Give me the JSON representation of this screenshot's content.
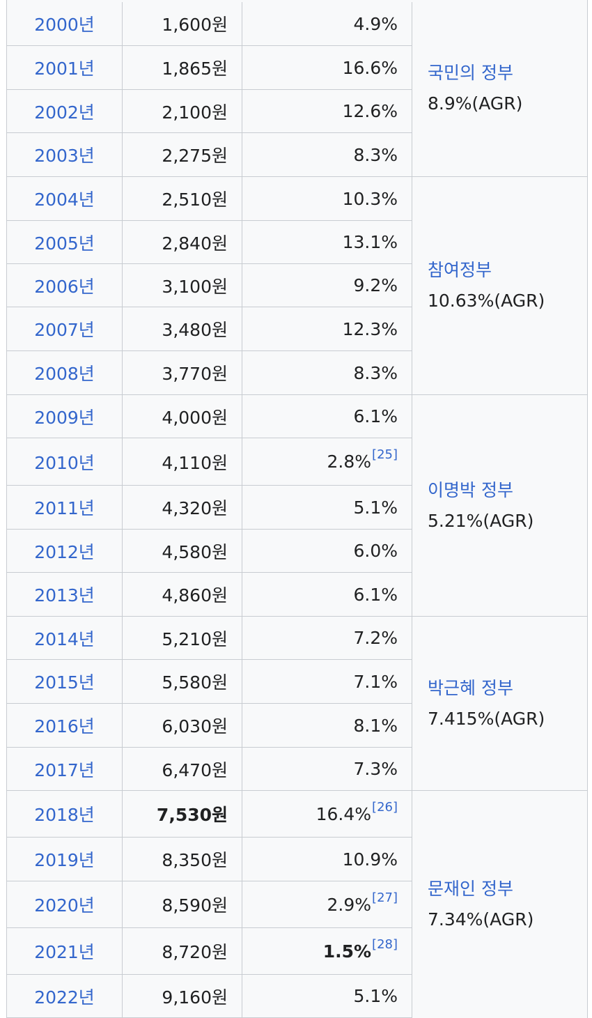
{
  "rows": [
    {
      "year": "2000년",
      "wage": "1,600원",
      "rate": "4.9%",
      "ref": ""
    },
    {
      "year": "2001년",
      "wage": "1,865원",
      "rate": "16.6%",
      "ref": ""
    },
    {
      "year": "2002년",
      "wage": "2,100원",
      "rate": "12.6%",
      "ref": ""
    },
    {
      "year": "2003년",
      "wage": "2,275원",
      "rate": "8.3%",
      "ref": ""
    },
    {
      "year": "2004년",
      "wage": "2,510원",
      "rate": "10.3%",
      "ref": ""
    },
    {
      "year": "2005년",
      "wage": "2,840원",
      "rate": "13.1%",
      "ref": ""
    },
    {
      "year": "2006년",
      "wage": "3,100원",
      "rate": "9.2%",
      "ref": ""
    },
    {
      "year": "2007년",
      "wage": "3,480원",
      "rate": "12.3%",
      "ref": ""
    },
    {
      "year": "2008년",
      "wage": "3,770원",
      "rate": "8.3%",
      "ref": ""
    },
    {
      "year": "2009년",
      "wage": "4,000원",
      "rate": "6.1%",
      "ref": ""
    },
    {
      "year": "2010년",
      "wage": "4,110원",
      "rate": "2.8%",
      "ref": "[25]"
    },
    {
      "year": "2011년",
      "wage": "4,320원",
      "rate": "5.1%",
      "ref": ""
    },
    {
      "year": "2012년",
      "wage": "4,580원",
      "rate": "6.0%",
      "ref": ""
    },
    {
      "year": "2013년",
      "wage": "4,860원",
      "rate": "6.1%",
      "ref": ""
    },
    {
      "year": "2014년",
      "wage": "5,210원",
      "rate": "7.2%",
      "ref": ""
    },
    {
      "year": "2015년",
      "wage": "5,580원",
      "rate": "7.1%",
      "ref": ""
    },
    {
      "year": "2016년",
      "wage": "6,030원",
      "rate": "8.1%",
      "ref": ""
    },
    {
      "year": "2017년",
      "wage": "6,470원",
      "rate": "7.3%",
      "ref": ""
    },
    {
      "year": "2018년",
      "wage": "7,530원",
      "rate": "16.4%",
      "ref": "[26]",
      "wage_bold": true
    },
    {
      "year": "2019년",
      "wage": "8,350원",
      "rate": "10.9%",
      "ref": ""
    },
    {
      "year": "2020년",
      "wage": "8,590원",
      "rate": "2.9%",
      "ref": "[27]"
    },
    {
      "year": "2021년",
      "wage": "8,720원",
      "rate": "1.5%",
      "ref": "[28]",
      "rate_bold": true
    },
    {
      "year": "2022년",
      "wage": "9,160원",
      "rate": "5.1%",
      "ref": ""
    }
  ],
  "governments": [
    {
      "name": "국민의 정부",
      "agr": "8.9%(AGR)",
      "rows": 4
    },
    {
      "name": "참여정부",
      "agr": "10.63%(AGR)",
      "rows": 5
    },
    {
      "name": "이명박 정부",
      "agr": "5.21%(AGR)",
      "rows": 5
    },
    {
      "name": "박근혜 정부",
      "agr": "7.415%(AGR)",
      "rows": 4
    },
    {
      "name": "문재인 정부",
      "agr": "7.34%(AGR)",
      "rows": 5
    }
  ]
}
